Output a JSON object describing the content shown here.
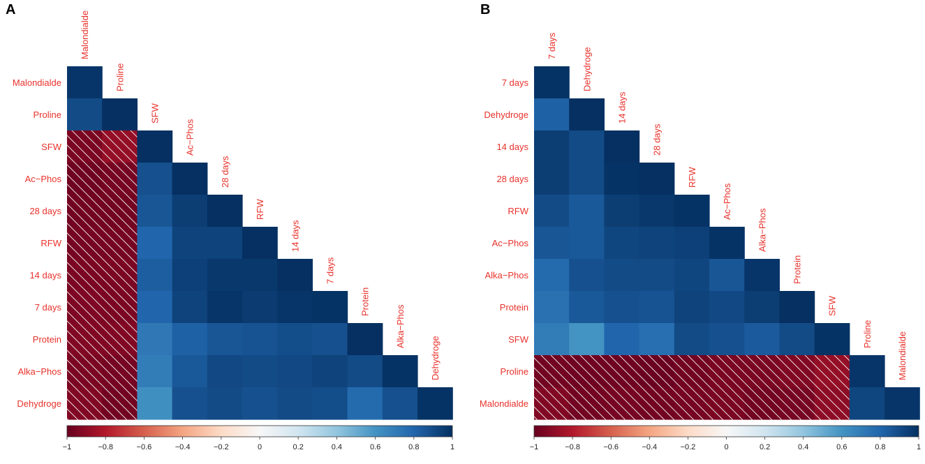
{
  "chart_data": [
    {
      "type": "heatmap",
      "panel": "A",
      "variables": [
        "Malondialde",
        "Proline",
        "SFW",
        "Ac−Phos",
        "28 days",
        "RFW",
        "14 days",
        "7 days",
        "Protein",
        "Alka−Phos",
        "Dehydroge"
      ],
      "values": [
        [
          0.98
        ],
        [
          0.9,
          1.0
        ],
        [
          -0.95,
          -0.88,
          1.0
        ],
        [
          -0.98,
          -0.96,
          0.88,
          1.0
        ],
        [
          -0.97,
          -0.97,
          0.86,
          0.95,
          1.0
        ],
        [
          -0.96,
          -0.96,
          0.8,
          0.93,
          0.93,
          1.0
        ],
        [
          -0.95,
          -0.95,
          0.83,
          0.94,
          0.97,
          0.97,
          1.0
        ],
        [
          -0.94,
          -0.95,
          0.8,
          0.93,
          0.98,
          0.96,
          0.98,
          0.99
        ],
        [
          -0.93,
          -0.93,
          0.72,
          0.82,
          0.86,
          0.87,
          0.89,
          0.88,
          1.0
        ],
        [
          -0.95,
          -0.96,
          0.7,
          0.85,
          0.91,
          0.9,
          0.91,
          0.93,
          0.9,
          0.99
        ],
        [
          -0.93,
          -0.97,
          0.62,
          0.88,
          0.9,
          0.88,
          0.9,
          0.89,
          0.78,
          0.88,
          0.99
        ]
      ],
      "significance_hatched": "negative cells",
      "colorbar": {
        "min": -1,
        "max": 1,
        "ticks": [
          -1,
          -0.8,
          -0.6,
          -0.4,
          -0.2,
          0,
          0.2,
          0.4,
          0.6,
          0.8,
          1
        ],
        "tick_labels": [
          "−1",
          "−0.8",
          "−0.6",
          "−0.4",
          "−0.2",
          "0",
          "0.2",
          "0.4",
          "0.6",
          "0.8",
          "1"
        ]
      }
    },
    {
      "type": "heatmap",
      "panel": "B",
      "variables": [
        "7 days",
        "Dehydroge",
        "14 days",
        "28 days",
        "RFW",
        "Ac−Phos",
        "Alka−Phos",
        "Protein",
        "SFW",
        "Proline",
        "Malondialde"
      ],
      "values": [
        [
          0.99
        ],
        [
          0.82,
          1.0
        ],
        [
          0.95,
          0.9,
          1.0
        ],
        [
          0.95,
          0.9,
          0.99,
          1.0
        ],
        [
          0.9,
          0.85,
          0.95,
          0.97,
          0.99
        ],
        [
          0.86,
          0.85,
          0.92,
          0.93,
          0.94,
          0.99
        ],
        [
          0.78,
          0.88,
          0.9,
          0.9,
          0.92,
          0.86,
          0.98
        ],
        [
          0.75,
          0.85,
          0.88,
          0.87,
          0.93,
          0.91,
          0.95,
          1.0
        ],
        [
          0.7,
          0.6,
          0.8,
          0.76,
          0.9,
          0.88,
          0.84,
          0.9,
          0.99
        ],
        [
          -0.97,
          -0.98,
          -0.98,
          -0.99,
          -0.97,
          -0.95,
          -0.95,
          -0.93,
          -0.88,
          0.98
        ],
        [
          -0.93,
          -0.97,
          -0.96,
          -0.97,
          -0.96,
          -0.95,
          -0.97,
          -0.96,
          -0.9,
          0.92,
          0.98
        ]
      ],
      "significance_hatched": "negative cells",
      "colorbar": {
        "min": -1,
        "max": 1,
        "ticks": [
          -1,
          -0.8,
          -0.6,
          -0.4,
          -0.2,
          0,
          0.2,
          0.4,
          0.6,
          0.8,
          1
        ],
        "tick_labels": [
          "−1",
          "−0.8",
          "−0.6",
          "−0.4",
          "−0.2",
          "0",
          "0.2",
          "0.4",
          "0.6",
          "0.8",
          "1"
        ]
      }
    }
  ]
}
